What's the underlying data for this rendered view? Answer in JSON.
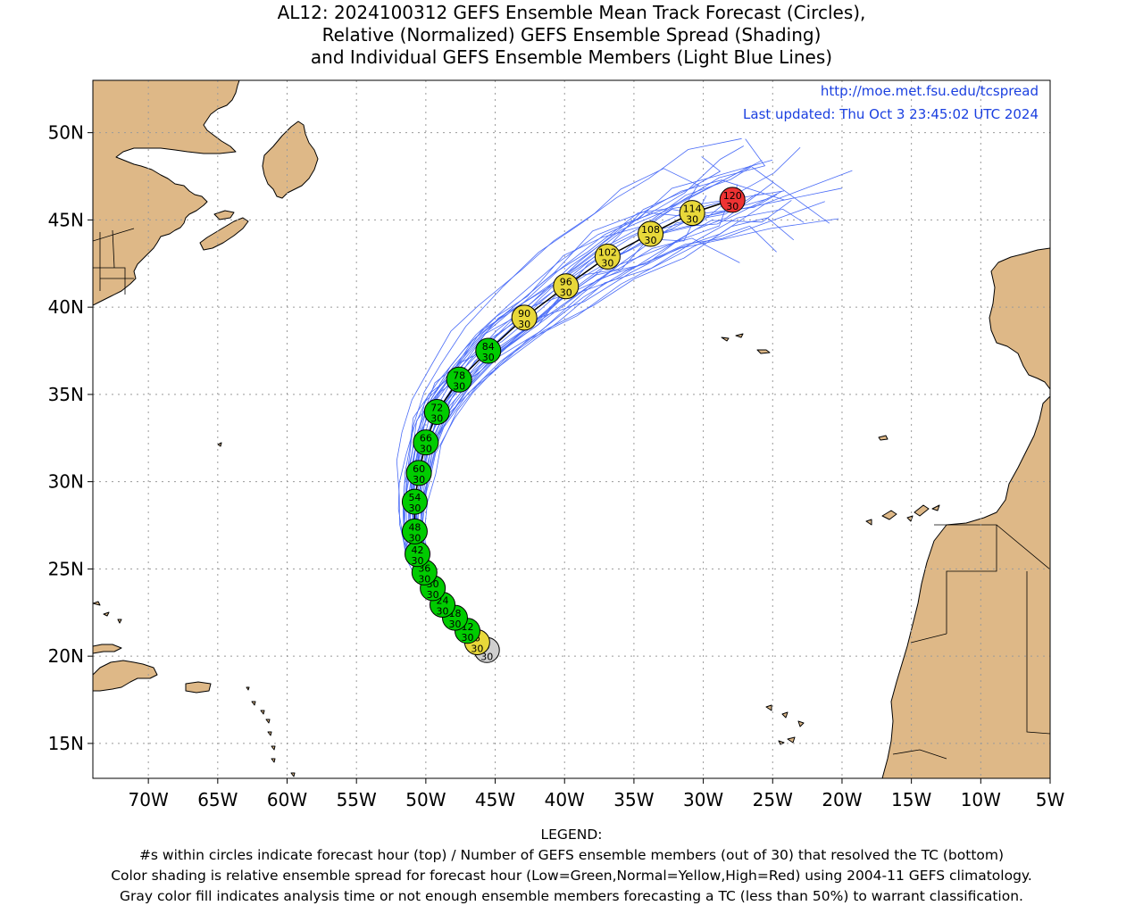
{
  "title": {
    "line1": "AL12: 2024100312 GEFS Ensemble Mean Track Forecast (Circles),",
    "line2": "Relative (Normalized) GEFS Ensemble Spread (Shading)",
    "line3": "and Individual GEFS Ensemble Members (Light Blue Lines)"
  },
  "credits": {
    "url": "http://moe.met.fsu.edu/tcspread",
    "updated": "Last updated: Thu Oct 3 23:45:02 UTC 2024"
  },
  "map": {
    "lon_range": [
      -74,
      -5
    ],
    "lat_range": [
      13,
      53
    ],
    "lon_ticks": [
      {
        "lon": -70,
        "label": "70W"
      },
      {
        "lon": -65,
        "label": "65W"
      },
      {
        "lon": -60,
        "label": "60W"
      },
      {
        "lon": -55,
        "label": "55W"
      },
      {
        "lon": -50,
        "label": "50W"
      },
      {
        "lon": -45,
        "label": "45W"
      },
      {
        "lon": -40,
        "label": "40W"
      },
      {
        "lon": -35,
        "label": "35W"
      },
      {
        "lon": -30,
        "label": "30W"
      },
      {
        "lon": -25,
        "label": "25W"
      },
      {
        "lon": -20,
        "label": "20W"
      },
      {
        "lon": -15,
        "label": "15W"
      },
      {
        "lon": -10,
        "label": "10W"
      },
      {
        "lon": -5,
        "label": "5W"
      }
    ],
    "lat_ticks": [
      {
        "lat": 15,
        "label": "15N"
      },
      {
        "lat": 20,
        "label": "20N"
      },
      {
        "lat": 25,
        "label": "25N"
      },
      {
        "lat": 30,
        "label": "30N"
      },
      {
        "lat": 35,
        "label": "35N"
      },
      {
        "lat": 40,
        "label": "40N"
      },
      {
        "lat": 45,
        "label": "45N"
      },
      {
        "lat": 50,
        "label": "50N"
      }
    ],
    "colors": {
      "land": "#deb887",
      "grid": "#9a9a9a",
      "track_members": "#4a6cf7",
      "mean_track": "#000000",
      "spread_low": "#00cc00",
      "spread_normal": "#e8d83a",
      "spread_high": "#ee3333",
      "gray": "#cfcfcf"
    }
  },
  "forecast_points": [
    {
      "hour": "0",
      "members": "30",
      "lon": -45.6,
      "lat": 20.35,
      "spread": "gray"
    },
    {
      "hour": "6",
      "members": "30",
      "lon": -46.3,
      "lat": 20.8,
      "spread": "normal"
    },
    {
      "hour": "12",
      "members": "30",
      "lon": -47.0,
      "lat": 21.45,
      "spread": "low"
    },
    {
      "hour": "18",
      "members": "30",
      "lon": -47.9,
      "lat": 22.2,
      "spread": "low"
    },
    {
      "hour": "24",
      "members": "30",
      "lon": -48.8,
      "lat": 22.95,
      "spread": "low"
    },
    {
      "hour": "30",
      "members": "30",
      "lon": -49.5,
      "lat": 23.9,
      "spread": "low"
    },
    {
      "hour": "36",
      "members": "30",
      "lon": -50.1,
      "lat": 24.8,
      "spread": "low"
    },
    {
      "hour": "42",
      "members": "30",
      "lon": -50.6,
      "lat": 25.85,
      "spread": "low"
    },
    {
      "hour": "48",
      "members": "30",
      "lon": -50.8,
      "lat": 27.15,
      "spread": "low"
    },
    {
      "hour": "54",
      "members": "30",
      "lon": -50.8,
      "lat": 28.85,
      "spread": "low"
    },
    {
      "hour": "60",
      "members": "30",
      "lon": -50.5,
      "lat": 30.5,
      "spread": "low"
    },
    {
      "hour": "66",
      "members": "30",
      "lon": -50.0,
      "lat": 32.25,
      "spread": "low"
    },
    {
      "hour": "72",
      "members": "30",
      "lon": -49.2,
      "lat": 34.0,
      "spread": "low"
    },
    {
      "hour": "78",
      "members": "30",
      "lon": -47.6,
      "lat": 35.85,
      "spread": "low"
    },
    {
      "hour": "84",
      "members": "30",
      "lon": -45.5,
      "lat": 37.5,
      "spread": "low"
    },
    {
      "hour": "90",
      "members": "30",
      "lon": -42.9,
      "lat": 39.4,
      "spread": "normal"
    },
    {
      "hour": "96",
      "members": "30",
      "lon": -39.9,
      "lat": 41.2,
      "spread": "normal"
    },
    {
      "hour": "102",
      "members": "30",
      "lon": -36.9,
      "lat": 42.9,
      "spread": "normal"
    },
    {
      "hour": "108",
      "members": "30",
      "lon": -33.8,
      "lat": 44.2,
      "spread": "normal"
    },
    {
      "hour": "114",
      "members": "30",
      "lon": -30.8,
      "lat": 45.4,
      "spread": "normal"
    },
    {
      "hour": "120",
      "members": "30",
      "lon": -27.9,
      "lat": 46.15,
      "spread": "high"
    }
  ],
  "legend": {
    "heading": "LEGEND:",
    "line1": "#s within circles indicate forecast hour (top) / Number of GEFS ensemble members (out of 30) that resolved the TC (bottom)",
    "line2": "Color shading is relative ensemble spread for forecast hour (Low=Green,Normal=Yellow,High=Red) using 2004-11 GEFS climatology.",
    "line3": "Gray color fill indicates analysis time or not enough ensemble members forecasting a TC (less than 50%) to warrant classification."
  }
}
